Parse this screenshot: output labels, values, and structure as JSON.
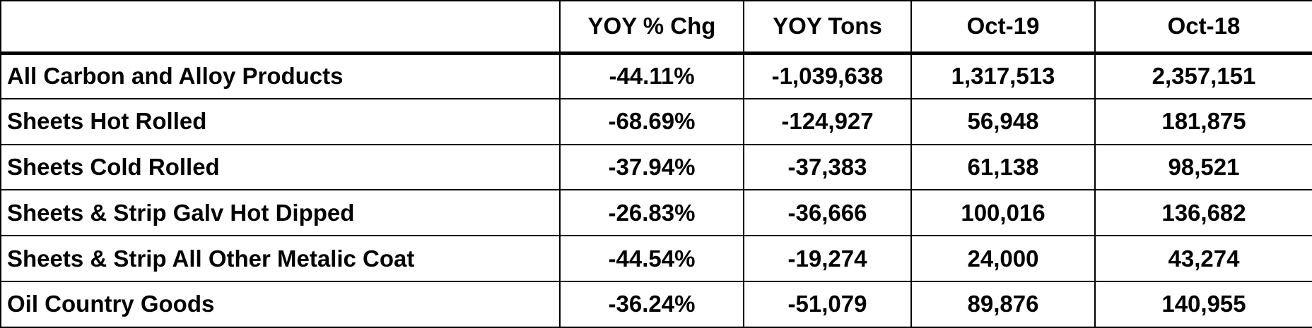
{
  "table": {
    "header": [
      "YOY % Chg",
      "YOY Tons",
      "Oct-19",
      "Oct-18"
    ],
    "rows": [
      [
        "All Carbon and Alloy Products",
        "-44.11%",
        "-1,039,638",
        "1,317,513",
        "2,357,151"
      ],
      [
        "Sheets Hot Rolled",
        "-68.69%",
        "-124,927",
        "56,948",
        "181,875"
      ],
      [
        "Sheets Cold Rolled",
        "-37.94%",
        "-37,383",
        "61,138",
        "98,521"
      ],
      [
        "Sheets & Strip Galv Hot Dipped",
        "-26.83%",
        "-36,666",
        "100,016",
        "136,682"
      ],
      [
        "Sheets & Strip All Other Metalic Coat",
        "-44.54%",
        "-19,274",
        "24,000",
        "43,274"
      ],
      [
        "Oil Country Goods",
        "-36.24%",
        "-51,079",
        "89,876",
        "140,955"
      ]
    ]
  }
}
